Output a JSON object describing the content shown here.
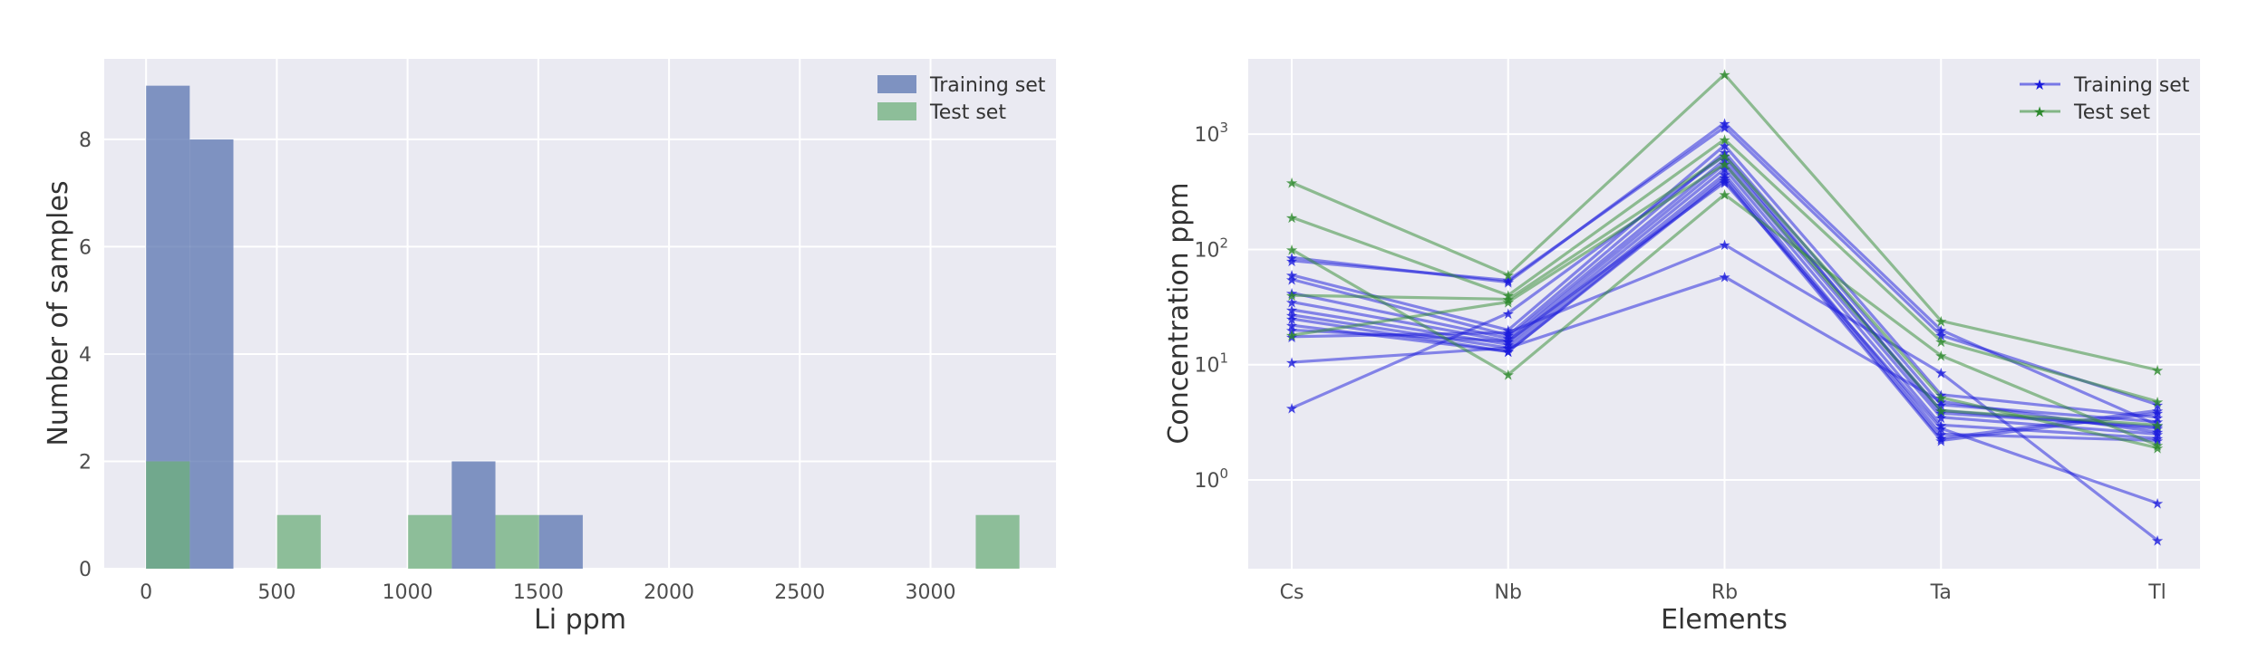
{
  "chart_data": [
    {
      "type": "bar",
      "subtype": "histogram",
      "xlabel": "Li ppm",
      "ylabel": "Number of samples",
      "xlim": [
        -160,
        3480
      ],
      "ylim": [
        0,
        9.5
      ],
      "xticks": [
        "0",
        "500",
        "1000",
        "1500",
        "2000",
        "2500",
        "3000"
      ],
      "xtick_values": [
        0,
        500,
        1000,
        1500,
        2000,
        2500,
        3000
      ],
      "yticks": [
        "0",
        "2",
        "4",
        "6",
        "8"
      ],
      "ytick_values": [
        0,
        2,
        4,
        6,
        8
      ],
      "grid": true,
      "legend_position": "top-right",
      "series": [
        {
          "name": "Training set",
          "color": "#5a74b0",
          "bins": [
            {
              "x0": 0,
              "x1": 167,
              "count": 9
            },
            {
              "x0": 167,
              "x1": 334,
              "count": 8
            },
            {
              "x0": 1169,
              "x1": 1336,
              "count": 2
            },
            {
              "x0": 1503,
              "x1": 1670,
              "count": 1
            }
          ]
        },
        {
          "name": "Test set",
          "color": "#6daf7b",
          "bins": [
            {
              "x0": 0,
              "x1": 167,
              "count": 2
            },
            {
              "x0": 501,
              "x1": 668,
              "count": 1
            },
            {
              "x0": 1002,
              "x1": 1169,
              "count": 1
            },
            {
              "x0": 1336,
              "x1": 1503,
              "count": 1
            },
            {
              "x0": 3173,
              "x1": 3340,
              "count": 1
            }
          ]
        }
      ]
    },
    {
      "type": "line",
      "xlabel": "Elements",
      "ylabel": "Concentration ppm",
      "yscale": "log",
      "ylim": [
        0.17,
        4500
      ],
      "categories": [
        "Cs",
        "Nb",
        "Rb",
        "Ta",
        "Tl"
      ],
      "yticks": [
        "10",
        "10",
        "10",
        "10"
      ],
      "ytick_exponents": [
        "0",
        "1",
        "2",
        "3"
      ],
      "ytick_values": [
        1,
        10,
        100,
        1000
      ],
      "grid": true,
      "legend_position": "top-right",
      "legend": [
        {
          "name": "Training set",
          "color": "#1a1adc"
        },
        {
          "name": "Test set",
          "color": "#2d8a2d"
        }
      ],
      "marker": "star",
      "series": [
        {
          "group": "Training set",
          "color": "#1a1adc",
          "values": [
            85,
            52,
            1250,
            20,
            3.0
          ]
        },
        {
          "group": "Training set",
          "color": "#1a1adc",
          "values": [
            80,
            54,
            1150,
            18,
            4.5
          ]
        },
        {
          "group": "Training set",
          "color": "#1a1adc",
          "values": [
            60,
            20,
            800,
            5.5,
            3.5
          ]
        },
        {
          "group": "Training set",
          "color": "#1a1adc",
          "values": [
            55,
            18,
            700,
            4.5,
            3.2
          ]
        },
        {
          "group": "Training set",
          "color": "#1a1adc",
          "values": [
            42,
            17,
            600,
            4.0,
            2.8
          ]
        },
        {
          "group": "Training set",
          "color": "#1a1adc",
          "values": [
            35,
            16,
            550,
            3.5,
            2.5
          ]
        },
        {
          "group": "Training set",
          "color": "#1a1adc",
          "values": [
            30,
            15,
            500,
            3.0,
            2.3
          ]
        },
        {
          "group": "Training set",
          "color": "#1a1adc",
          "values": [
            27,
            14,
            450,
            2.5,
            2.2
          ]
        },
        {
          "group": "Training set",
          "color": "#1a1adc",
          "values": [
            25,
            13,
            420,
            2.3,
            4.0
          ]
        },
        {
          "group": "Training set",
          "color": "#1a1adc",
          "values": [
            22,
            13,
            400,
            2.2,
            3.8
          ]
        },
        {
          "group": "Training set",
          "color": "#1a1adc",
          "values": [
            20,
            16,
            380,
            2.8,
            0.63
          ]
        },
        {
          "group": "Training set",
          "color": "#1a1adc",
          "values": [
            17.5,
            19,
            110,
            8.5,
            0.3
          ]
        },
        {
          "group": "Training set",
          "color": "#1a1adc",
          "values": [
            10.5,
            14,
            58,
            4.8,
            2.6
          ]
        },
        {
          "group": "Training set",
          "color": "#1a1adc",
          "values": [
            4.2,
            28,
            650,
            3.8,
            2.9
          ]
        },
        {
          "group": "Test set",
          "color": "#2d8a2d",
          "values": [
            380,
            60,
            3300,
            24,
            9.0
          ]
        },
        {
          "group": "Test set",
          "color": "#2d8a2d",
          "values": [
            190,
            40,
            900,
            16,
            4.8
          ]
        },
        {
          "group": "Test set",
          "color": "#2d8a2d",
          "values": [
            100,
            8.2,
            300,
            12,
            2.0
          ]
        },
        {
          "group": "Test set",
          "color": "#2d8a2d",
          "values": [
            40,
            37,
            650,
            5.2,
            1.9
          ]
        },
        {
          "group": "Test set",
          "color": "#2d8a2d",
          "values": [
            18,
            35,
            550,
            4.0,
            3.0
          ]
        }
      ]
    }
  ]
}
